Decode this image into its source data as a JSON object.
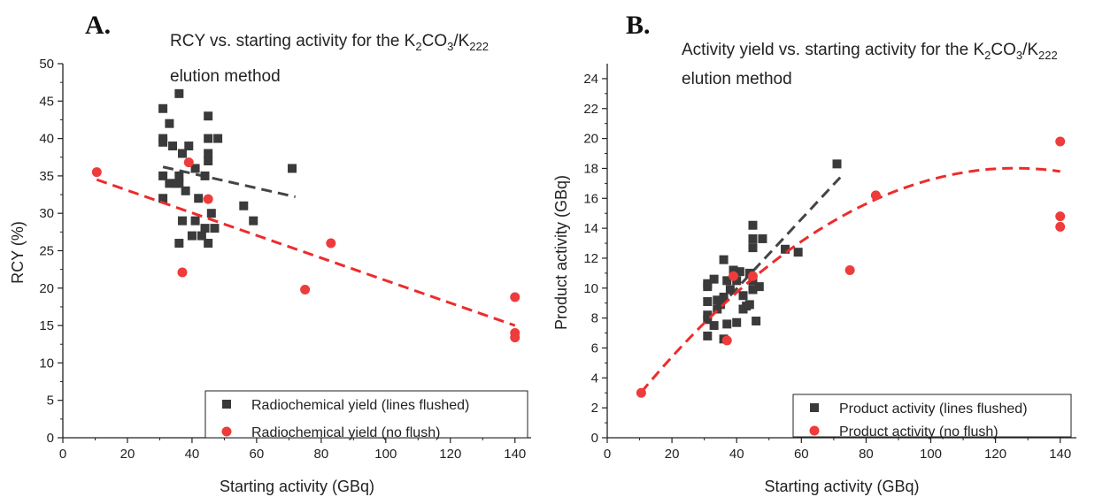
{
  "chart_data": [
    {
      "type": "scatter",
      "panel_letter": "A.",
      "title_line1": "RCY vs. starting activity for the K",
      "title_sub1": "2",
      "title_mid": "CO",
      "title_sub2": "3",
      "title_slash": "/K",
      "title_sub3": "222",
      "title_line2": "elution method",
      "xlabel": "Starting activity (GBq)",
      "ylabel": "RCY (%)",
      "xlim": [
        0,
        145
      ],
      "ylim": [
        0,
        50
      ],
      "xticks": [
        0,
        20,
        40,
        60,
        80,
        100,
        120,
        140
      ],
      "yticks": [
        0,
        5,
        10,
        15,
        20,
        25,
        30,
        35,
        40,
        45,
        50
      ],
      "legend_position": "bottom-right",
      "series": [
        {
          "name": "Radiochemical yield (lines flushed)",
          "marker": "square",
          "color": "#3a3a3a",
          "points": [
            [
              31,
              44
            ],
            [
              31,
              40
            ],
            [
              31,
              39.5
            ],
            [
              31,
              35
            ],
            [
              31,
              32
            ],
            [
              33,
              34
            ],
            [
              33,
              42
            ],
            [
              34,
              39
            ],
            [
              35,
              34
            ],
            [
              36,
              46
            ],
            [
              36,
              35
            ],
            [
              36,
              34
            ],
            [
              36,
              26
            ],
            [
              37,
              29
            ],
            [
              37,
              38
            ],
            [
              38,
              33
            ],
            [
              39,
              39
            ],
            [
              40,
              27
            ],
            [
              41,
              36
            ],
            [
              41,
              29
            ],
            [
              42,
              32
            ],
            [
              43,
              27
            ],
            [
              44,
              28
            ],
            [
              44,
              35
            ],
            [
              45,
              26
            ],
            [
              45,
              43
            ],
            [
              45,
              40
            ],
            [
              45,
              38
            ],
            [
              45,
              37
            ],
            [
              46,
              30
            ],
            [
              47,
              28
            ],
            [
              48,
              40
            ],
            [
              56,
              31
            ],
            [
              59,
              29
            ],
            [
              71,
              36
            ]
          ],
          "fit": {
            "type": "linear",
            "x": [
              31,
              72
            ],
            "y": [
              36.2,
              32.2
            ],
            "color": "#444444"
          }
        },
        {
          "name": "Radiochemical yield (no flush)",
          "marker": "circle",
          "color": "#ee3b3b",
          "points": [
            [
              10.5,
              35.5
            ],
            [
              37,
              22.1
            ],
            [
              39,
              36.8
            ],
            [
              45,
              31.9
            ],
            [
              75,
              19.8
            ],
            [
              83,
              26
            ],
            [
              140,
              18.8
            ],
            [
              140,
              14
            ],
            [
              140,
              13.4
            ]
          ],
          "fit": {
            "type": "linear",
            "x": [
              10.5,
              140
            ],
            "y": [
              34.5,
              15.0
            ],
            "color": "#ee2b2b"
          }
        }
      ]
    },
    {
      "type": "scatter",
      "panel_letter": "B.",
      "title_line1": "Activity yield vs. starting activity for the K",
      "title_sub1": "2",
      "title_mid": "CO",
      "title_sub2": "3",
      "title_slash": "/K",
      "title_sub3": "222",
      "title_line2": "elution method",
      "xlabel": "Starting activity (GBq)",
      "ylabel": "Product activity (GBq)",
      "xlim": [
        0,
        145
      ],
      "ylim": [
        0,
        25
      ],
      "xticks": [
        0,
        20,
        40,
        60,
        80,
        100,
        120,
        140
      ],
      "yticks": [
        0,
        2,
        4,
        6,
        8,
        10,
        12,
        14,
        16,
        18,
        20,
        22,
        24
      ],
      "legend_position": "bottom-right",
      "series": [
        {
          "name": "Product activity (lines flushed)",
          "marker": "square",
          "color": "#3a3a3a",
          "points": [
            [
              31,
              10.3
            ],
            [
              31,
              10.1
            ],
            [
              31,
              9.1
            ],
            [
              31,
              8.2
            ],
            [
              31,
              7.9
            ],
            [
              31,
              6.8
            ],
            [
              33,
              10.6
            ],
            [
              33,
              7.5
            ],
            [
              34,
              8.6
            ],
            [
              34,
              9.2
            ],
            [
              35,
              8.9
            ],
            [
              36,
              11.9
            ],
            [
              36,
              6.6
            ],
            [
              36,
              9.4
            ],
            [
              37,
              10.5
            ],
            [
              37,
              7.6
            ],
            [
              38,
              9.9
            ],
            [
              39,
              11.2
            ],
            [
              40,
              7.7
            ],
            [
              40,
              10.5
            ],
            [
              41,
              11.1
            ],
            [
              42,
              8.6
            ],
            [
              42,
              9.5
            ],
            [
              43,
              8.8
            ],
            [
              44,
              11.0
            ],
            [
              44,
              8.9
            ],
            [
              45,
              10.5
            ],
            [
              45,
              13.3
            ],
            [
              45,
              14.2
            ],
            [
              45,
              12.7
            ],
            [
              45,
              9.9
            ],
            [
              46,
              7.8
            ],
            [
              47,
              10.1
            ],
            [
              48,
              13.3
            ],
            [
              55,
              12.6
            ],
            [
              59,
              12.4
            ],
            [
              71,
              18.3
            ]
          ],
          "fit": {
            "type": "linear",
            "x": [
              38,
              72
            ],
            "y": [
              9.5,
              17.4
            ],
            "color": "#444444"
          }
        },
        {
          "name": "Product activity (no flush)",
          "marker": "circle",
          "color": "#ee3b3b",
          "points": [
            [
              10.5,
              3.0
            ],
            [
              37,
              6.5
            ],
            [
              39,
              10.8
            ],
            [
              45,
              10.8
            ],
            [
              75,
              11.2
            ],
            [
              83,
              16.2
            ],
            [
              140,
              19.8
            ],
            [
              140,
              14.8
            ],
            [
              140,
              14.1
            ]
          ],
          "fit": {
            "type": "quadratic",
            "coef": [
              -0.00112,
              0.2825,
              0.2
            ],
            "xrange": [
              10.5,
              140
            ],
            "color": "#ee2b2b"
          }
        }
      ]
    }
  ]
}
